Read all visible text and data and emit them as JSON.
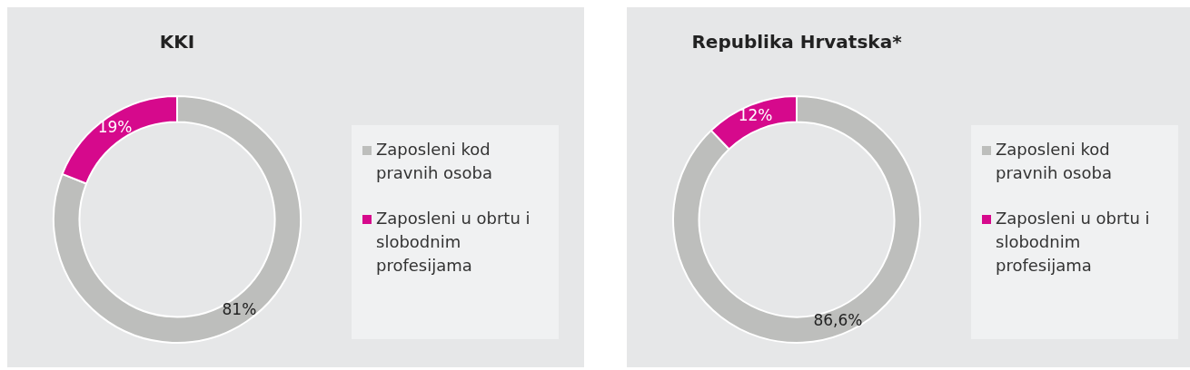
{
  "chart_data": [
    {
      "type": "donut",
      "title": "KKI",
      "categories": [
        "Zaposleni kod pravnih osoba",
        "Zaposleni u obrtu i slobodnim profesijama"
      ],
      "values": [
        81,
        19
      ],
      "colors": [
        "#bdbebc",
        "#d6098c"
      ],
      "value_labels": [
        "81%",
        "19%"
      ],
      "legend": "right"
    },
    {
      "type": "donut",
      "title": "Republika Hrvatska*",
      "categories": [
        "Zaposleni kod pravnih osoba",
        "Zaposleni u obrtu i slobodnim profesijama"
      ],
      "values": [
        86.6,
        12
      ],
      "colors": [
        "#bdbebc",
        "#d6098c"
      ],
      "value_labels": [
        "86,6%",
        "12%"
      ],
      "legend": "right"
    }
  ]
}
